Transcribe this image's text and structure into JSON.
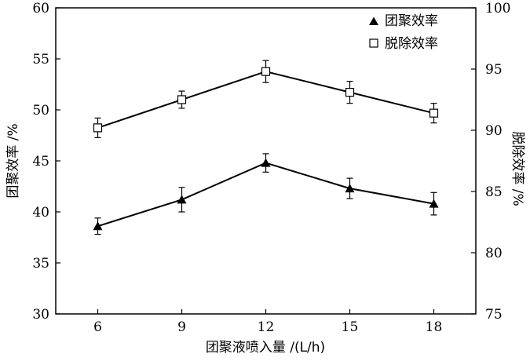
{
  "chart_data": {
    "type": "line",
    "x": [
      6,
      9,
      12,
      15,
      18
    ],
    "xlabel": "团聚液喷入量 /(L/h)",
    "ylabel_left": "团聚效率 /%",
    "ylabel_right": "脱除效率 /%",
    "xlim": [
      4.5,
      19.5
    ],
    "ylim_left": [
      30,
      60
    ],
    "ylim_right": [
      75,
      100
    ],
    "xticks": [
      "6",
      "9",
      "12",
      "15",
      "18"
    ],
    "yticks_left": [
      "30",
      "35",
      "40",
      "45",
      "50",
      "55",
      "60"
    ],
    "yticks_right": [
      "75",
      "80",
      "85",
      "90",
      "95",
      "100"
    ],
    "legend_position": "top-right",
    "series": [
      {
        "name": "团聚效率",
        "axis": "left",
        "marker": "filled-triangle",
        "values": [
          38.6,
          41.2,
          44.8,
          42.3,
          40.8
        ],
        "error": [
          0.8,
          1.2,
          0.9,
          1.0,
          1.1
        ]
      },
      {
        "name": "脱除效率",
        "axis": "right",
        "marker": "open-square",
        "values": [
          90.2,
          92.5,
          94.8,
          93.1,
          91.4
        ],
        "error": [
          0.8,
          0.7,
          0.9,
          0.9,
          0.8
        ]
      }
    ]
  }
}
